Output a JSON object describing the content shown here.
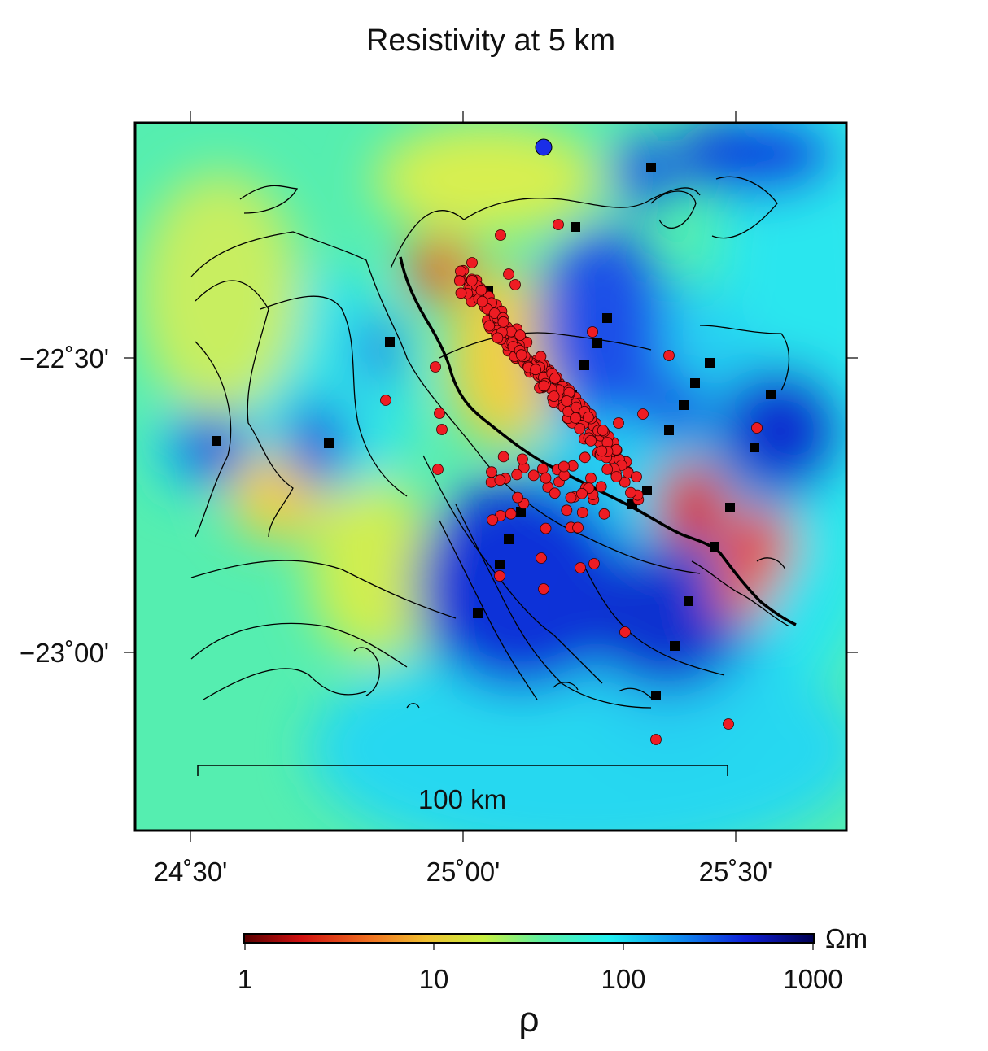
{
  "title": "Resistivity at 5 km",
  "lon_ticks": [
    "24˚30'",
    "25˚00'",
    "25˚30'"
  ],
  "lat_ticks": [
    "−22˚30'",
    "−23˚00'"
  ],
  "scale_bar_label": "100 km",
  "colorbar": {
    "unit": "Ωm",
    "tick_labels": [
      "1",
      "10",
      "100",
      "1000"
    ],
    "symbol": "ρ",
    "colormap_stops": [
      "#5a0000",
      "#d01010",
      "#f07020",
      "#f0c030",
      "#c8f040",
      "#60f0a0",
      "#20f0f0",
      "#1090f0",
      "#1020d8",
      "#000050"
    ]
  },
  "layers": {
    "earthquake_marker_color": "#ee1c23",
    "station_marker_color": "#000000",
    "fault_color": "#000000"
  }
}
